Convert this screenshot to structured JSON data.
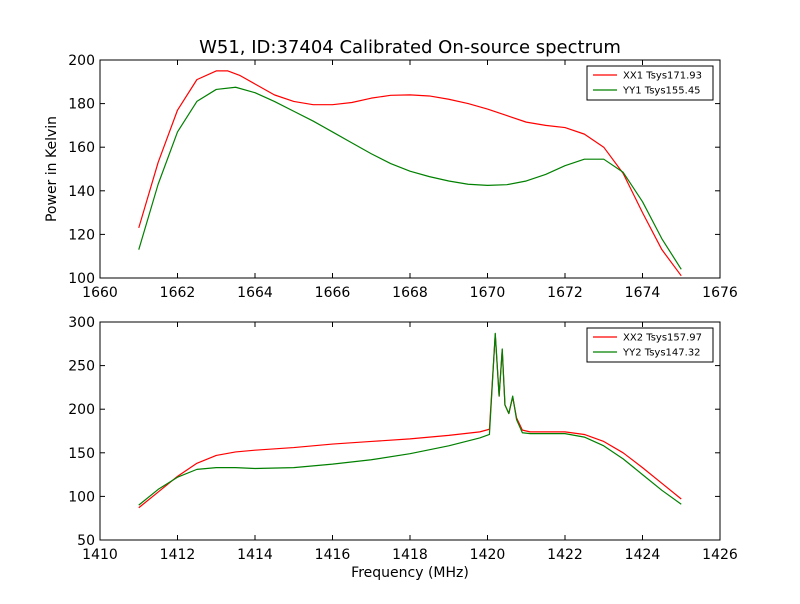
{
  "figure": {
    "title": "W51, ID:37404 Calibrated On-source spectrum"
  },
  "chart_data": [
    {
      "type": "line",
      "title": "W51, ID:37404 Calibrated On-source spectrum",
      "xlabel": "",
      "ylabel": "Power in Kelvin",
      "xlim": [
        1660,
        1676
      ],
      "ylim": [
        100,
        200
      ],
      "xticks": [
        1660,
        1662,
        1664,
        1666,
        1668,
        1670,
        1672,
        1674,
        1676
      ],
      "yticks": [
        100,
        120,
        140,
        160,
        180,
        200
      ],
      "grid": false,
      "legend_position": "top-right",
      "series": [
        {
          "name": "XX1 Tsys171.93",
          "color": "#ff0000",
          "x": [
            1661.0,
            1661.5,
            1662.0,
            1662.5,
            1663.0,
            1663.3,
            1663.6,
            1664.0,
            1664.5,
            1665.0,
            1665.5,
            1666.0,
            1666.5,
            1667.0,
            1667.5,
            1668.0,
            1668.5,
            1669.0,
            1669.5,
            1670.0,
            1670.5,
            1671.0,
            1671.5,
            1672.0,
            1672.5,
            1673.0,
            1673.5,
            1674.0,
            1674.5,
            1675.0
          ],
          "y": [
            123,
            153,
            177,
            191,
            195,
            195,
            193,
            189,
            184,
            181,
            179.5,
            179.5,
            180.5,
            182.5,
            183.8,
            184,
            183.5,
            182,
            180,
            177.5,
            174.5,
            171.5,
            170,
            169,
            166,
            160,
            148,
            130,
            113,
            101
          ]
        },
        {
          "name": "YY1 Tsys155.45",
          "color": "#008000",
          "x": [
            1661.0,
            1661.5,
            1662.0,
            1662.5,
            1663.0,
            1663.5,
            1664.0,
            1664.5,
            1665.0,
            1665.5,
            1666.0,
            1666.5,
            1667.0,
            1667.5,
            1668.0,
            1668.5,
            1669.0,
            1669.5,
            1670.0,
            1670.5,
            1671.0,
            1671.5,
            1672.0,
            1672.5,
            1673.0,
            1673.5,
            1674.0,
            1674.5,
            1675.0
          ],
          "y": [
            113,
            143,
            167,
            181,
            186.5,
            187.5,
            185,
            181,
            176.5,
            172,
            167,
            162,
            157,
            152.5,
            149,
            146.5,
            144.5,
            143,
            142.5,
            142.8,
            144.5,
            147.5,
            151.5,
            154.5,
            154.5,
            148.5,
            135,
            118,
            104
          ]
        }
      ]
    },
    {
      "type": "line",
      "title": "",
      "xlabel": "Frequency (MHz)",
      "ylabel": "",
      "xlim": [
        1410,
        1426
      ],
      "ylim": [
        50,
        300
      ],
      "xticks": [
        1410,
        1412,
        1414,
        1416,
        1418,
        1420,
        1422,
        1424,
        1426
      ],
      "yticks": [
        50,
        100,
        150,
        200,
        250,
        300
      ],
      "grid": false,
      "legend_position": "top-right",
      "series": [
        {
          "name": "XX2 Tsys157.97",
          "color": "#ff0000",
          "x": [
            1411.0,
            1411.5,
            1412.0,
            1412.5,
            1413.0,
            1413.5,
            1414.0,
            1415.0,
            1416.0,
            1417.0,
            1418.0,
            1419.0,
            1419.8,
            1420.05,
            1420.2,
            1420.3,
            1420.38,
            1420.45,
            1420.55,
            1420.65,
            1420.75,
            1420.9,
            1421.1,
            1421.5,
            1422.0,
            1422.5,
            1423.0,
            1423.5,
            1424.0,
            1424.5,
            1425.0
          ],
          "y": [
            87,
            105,
            123,
            138,
            147,
            151,
            153,
            156,
            160,
            163,
            166,
            170,
            174,
            177,
            286,
            215,
            268,
            205,
            195,
            214,
            190,
            176,
            174,
            174,
            174,
            171,
            163,
            150,
            133,
            115,
            97
          ]
        },
        {
          "name": "YY2 Tsys147.32",
          "color": "#008000",
          "x": [
            1411.0,
            1411.5,
            1412.0,
            1412.5,
            1413.0,
            1413.5,
            1414.0,
            1415.0,
            1416.0,
            1417.0,
            1418.0,
            1419.0,
            1419.8,
            1420.05,
            1420.2,
            1420.3,
            1420.38,
            1420.45,
            1420.55,
            1420.65,
            1420.75,
            1420.9,
            1421.1,
            1421.5,
            1422.0,
            1422.5,
            1423.0,
            1423.5,
            1424.0,
            1424.5,
            1425.0
          ],
          "y": [
            90,
            108,
            122,
            131,
            133,
            133,
            132,
            133,
            137,
            142,
            149,
            158,
            167,
            171,
            287,
            215,
            269,
            205,
            195,
            215,
            188,
            173,
            172,
            172,
            172,
            168,
            158,
            143,
            125,
            107,
            91
          ]
        }
      ]
    }
  ]
}
